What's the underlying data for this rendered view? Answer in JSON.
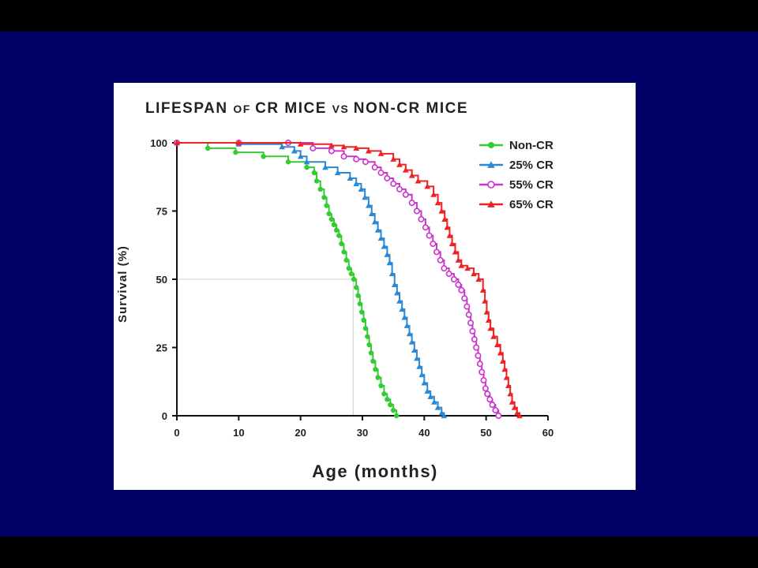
{
  "chart_data": {
    "type": "line",
    "title": "LIFESPAN OF CR MICE VS NON-CR MICE",
    "title_parts": [
      {
        "text": "LIFESPAN ",
        "small": false
      },
      {
        "text": "OF ",
        "small": true
      },
      {
        "text": "CR MICE ",
        "small": false
      },
      {
        "text": "VS ",
        "small": true
      },
      {
        "text": "NON-CR MICE",
        "small": false
      }
    ],
    "xlabel": "Age (months)",
    "ylabel": "Survival (%)",
    "xlim": [
      0,
      60
    ],
    "ylim": [
      0,
      100
    ],
    "xticks": [
      "0",
      "10",
      "20",
      "30",
      "40",
      "50",
      "60"
    ],
    "yticks": [
      "0",
      "25",
      "50",
      "75",
      "100"
    ],
    "median_marker": {
      "x": 28.5,
      "y": 50
    },
    "legend_position": "top-right",
    "series": [
      {
        "name": "Non-CR",
        "color": "#33cc33",
        "marker": "filled-circle",
        "points": [
          [
            0,
            100
          ],
          [
            5,
            98
          ],
          [
            9.5,
            96.5
          ],
          [
            14,
            95
          ],
          [
            18,
            93
          ],
          [
            21,
            91
          ],
          [
            22.2,
            89
          ],
          [
            22.6,
            86
          ],
          [
            23.2,
            83
          ],
          [
            23.8,
            80
          ],
          [
            24.2,
            77
          ],
          [
            24.6,
            74
          ],
          [
            25,
            72
          ],
          [
            25.4,
            70
          ],
          [
            25.8,
            68
          ],
          [
            26.2,
            66
          ],
          [
            26.6,
            63
          ],
          [
            27,
            60
          ],
          [
            27.4,
            57
          ],
          [
            27.8,
            54
          ],
          [
            28.2,
            52
          ],
          [
            28.6,
            50
          ],
          [
            29,
            47
          ],
          [
            29.3,
            44
          ],
          [
            29.6,
            41
          ],
          [
            29.9,
            38
          ],
          [
            30.2,
            35
          ],
          [
            30.5,
            32
          ],
          [
            30.8,
            29
          ],
          [
            31.1,
            26
          ],
          [
            31.4,
            23
          ],
          [
            31.7,
            20
          ],
          [
            32.1,
            17
          ],
          [
            32.5,
            14
          ],
          [
            33,
            11
          ],
          [
            33.5,
            8
          ],
          [
            34,
            6
          ],
          [
            34.5,
            4
          ],
          [
            35,
            2
          ],
          [
            35.5,
            0
          ]
        ]
      },
      {
        "name": "25% CR",
        "color": "#2a88d4",
        "marker": "filled-triangle",
        "points": [
          [
            0,
            100
          ],
          [
            10,
            99.5
          ],
          [
            17,
            98.5
          ],
          [
            19,
            97
          ],
          [
            20,
            95
          ],
          [
            21,
            93
          ],
          [
            24,
            91
          ],
          [
            26,
            89
          ],
          [
            28,
            87
          ],
          [
            29,
            85
          ],
          [
            29.8,
            83
          ],
          [
            30.4,
            80
          ],
          [
            31,
            77
          ],
          [
            31.5,
            74
          ],
          [
            32,
            71
          ],
          [
            32.5,
            68
          ],
          [
            33,
            65
          ],
          [
            33.5,
            62
          ],
          [
            34,
            59
          ],
          [
            34.4,
            56
          ],
          [
            34.8,
            52
          ],
          [
            35.2,
            48
          ],
          [
            35.6,
            45
          ],
          [
            36,
            42
          ],
          [
            36.4,
            39
          ],
          [
            36.8,
            36
          ],
          [
            37.2,
            33
          ],
          [
            37.6,
            30
          ],
          [
            38,
            27
          ],
          [
            38.4,
            24
          ],
          [
            38.8,
            21
          ],
          [
            39.2,
            18
          ],
          [
            39.6,
            15
          ],
          [
            40,
            12
          ],
          [
            40.5,
            9
          ],
          [
            41,
            7
          ],
          [
            41.6,
            5
          ],
          [
            42.2,
            3
          ],
          [
            42.8,
            1
          ],
          [
            43.2,
            0
          ]
        ]
      },
      {
        "name": "55% CR",
        "color": "#cc33cc",
        "marker": "open-circle",
        "points": [
          [
            0,
            100
          ],
          [
            10,
            100
          ],
          [
            18,
            100
          ],
          [
            22,
            98
          ],
          [
            25,
            97
          ],
          [
            27,
            95
          ],
          [
            29,
            94
          ],
          [
            30.5,
            93
          ],
          [
            32,
            91
          ],
          [
            33,
            89
          ],
          [
            34,
            87
          ],
          [
            35,
            85
          ],
          [
            36,
            83
          ],
          [
            37,
            81
          ],
          [
            38,
            78
          ],
          [
            38.8,
            75
          ],
          [
            39.5,
            72
          ],
          [
            40.2,
            69
          ],
          [
            40.8,
            66
          ],
          [
            41.4,
            63
          ],
          [
            42,
            60
          ],
          [
            42.6,
            57
          ],
          [
            43.2,
            54
          ],
          [
            44,
            52
          ],
          [
            44.8,
            50
          ],
          [
            45.5,
            48
          ],
          [
            46,
            46
          ],
          [
            46.5,
            43
          ],
          [
            46.9,
            40
          ],
          [
            47.2,
            37
          ],
          [
            47.5,
            34
          ],
          [
            47.8,
            31
          ],
          [
            48.1,
            28
          ],
          [
            48.4,
            25
          ],
          [
            48.7,
            22
          ],
          [
            49,
            19
          ],
          [
            49.3,
            16
          ],
          [
            49.6,
            13
          ],
          [
            49.9,
            10
          ],
          [
            50.2,
            8
          ],
          [
            50.6,
            6
          ],
          [
            51,
            4
          ],
          [
            51.5,
            2
          ],
          [
            52,
            0
          ]
        ]
      },
      {
        "name": "65% CR",
        "color": "#ee2222",
        "marker": "filled-triangle",
        "points": [
          [
            0,
            100
          ],
          [
            10,
            100
          ],
          [
            20,
            99.5
          ],
          [
            25,
            99
          ],
          [
            27,
            98.5
          ],
          [
            29,
            98
          ],
          [
            31,
            97
          ],
          [
            33,
            96
          ],
          [
            35,
            94
          ],
          [
            36,
            92
          ],
          [
            37,
            90
          ],
          [
            38,
            88
          ],
          [
            39,
            86
          ],
          [
            40.5,
            84
          ],
          [
            41.5,
            81
          ],
          [
            42.2,
            78
          ],
          [
            42.8,
            75
          ],
          [
            43.3,
            72
          ],
          [
            43.7,
            69
          ],
          [
            44.1,
            66
          ],
          [
            44.5,
            63
          ],
          [
            45,
            60
          ],
          [
            45.5,
            57
          ],
          [
            46,
            55
          ],
          [
            47,
            54
          ],
          [
            48,
            52
          ],
          [
            48.8,
            50
          ],
          [
            49.5,
            46
          ],
          [
            49.8,
            42
          ],
          [
            50.1,
            38
          ],
          [
            50.4,
            35
          ],
          [
            50.7,
            32
          ],
          [
            51.2,
            29
          ],
          [
            51.8,
            26
          ],
          [
            52.3,
            23
          ],
          [
            52.7,
            20
          ],
          [
            53,
            17
          ],
          [
            53.3,
            14
          ],
          [
            53.6,
            11
          ],
          [
            53.9,
            8
          ],
          [
            54.2,
            5
          ],
          [
            54.6,
            3
          ],
          [
            55,
            1
          ],
          [
            55.4,
            0
          ]
        ]
      }
    ]
  }
}
